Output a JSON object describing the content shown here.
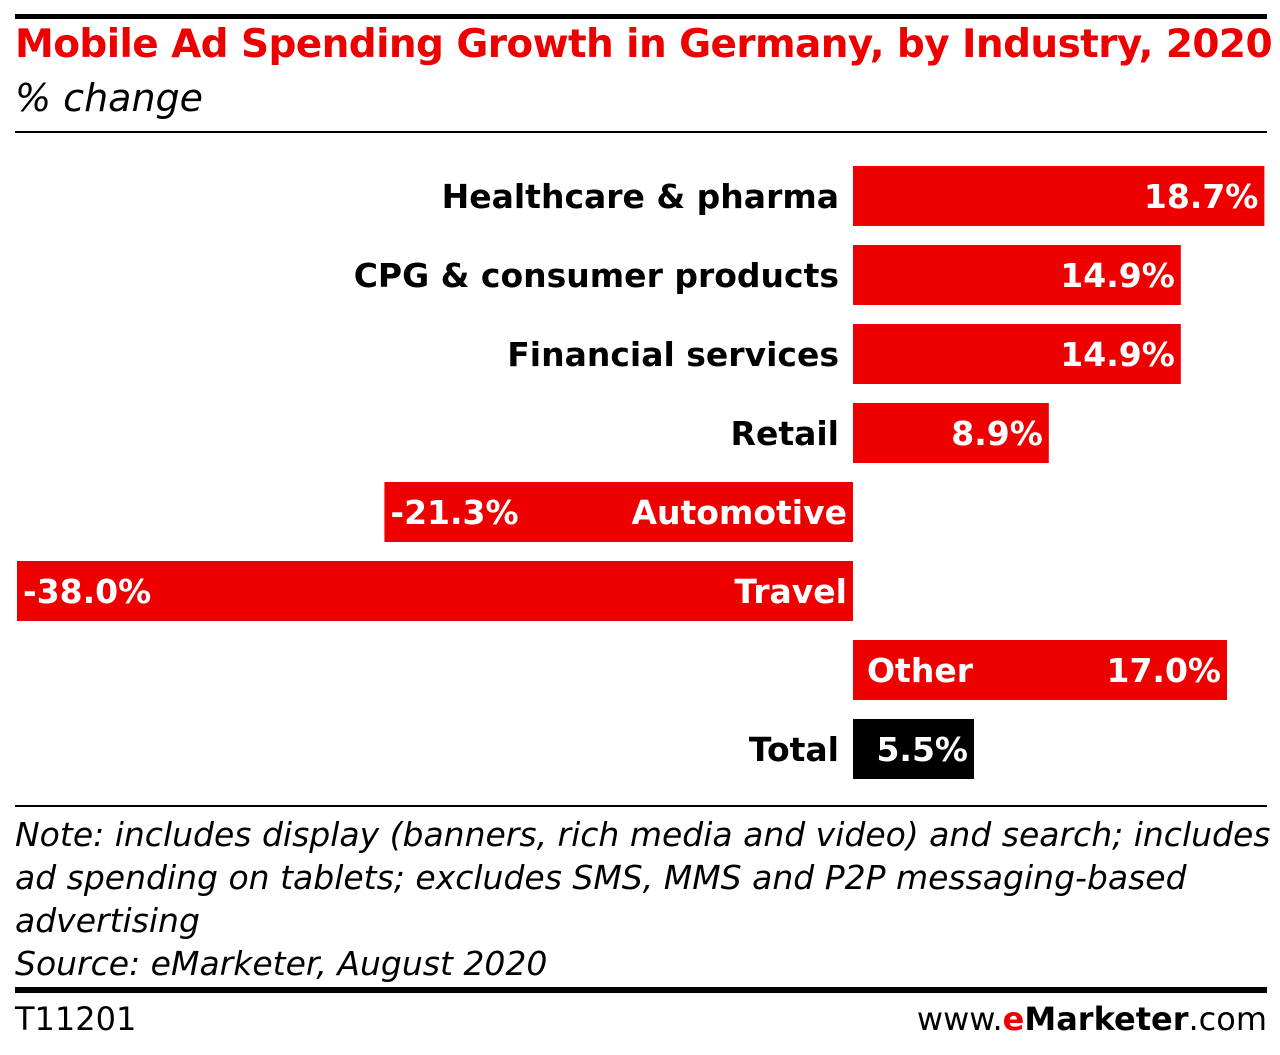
{
  "header": {
    "title": "Mobile Ad Spending Growth in Germany, by Industry, 2020",
    "subtitle": "% change"
  },
  "chart_data": {
    "type": "bar",
    "orientation": "horizontal",
    "title": "Mobile Ad Spending Growth in Germany, by Industry, 2020",
    "subtitle": "% change",
    "categories": [
      "Healthcare & pharma",
      "CPG & consumer products",
      "Financial services",
      "Retail",
      "Automotive",
      "Travel",
      "Other",
      "Total"
    ],
    "values": [
      18.7,
      14.9,
      14.9,
      8.9,
      -21.3,
      -38.0,
      17.0,
      5.5
    ],
    "value_labels": [
      "18.7%",
      "14.9%",
      "14.9%",
      "8.9%",
      "-21.3%",
      "-38.0%",
      "17.0%",
      "5.5%"
    ],
    "xlim": [
      -38.0,
      18.7
    ],
    "grid": false,
    "legend": "none",
    "colors": {
      "bar": "#ee0000",
      "total": "#000000"
    }
  },
  "footer": {
    "note_lines": [
      "Note: includes display (banners, rich media and video) and search; includes",
      "ad spending on tablets; excludes SMS, MMS and P2P messaging-based",
      "advertising"
    ],
    "source": "Source: eMarketer, August 2020",
    "code": "T11201",
    "brand_prefix": "www.",
    "brand_e": "e",
    "brand_name": "Marketer",
    "brand_suffix": ".com"
  }
}
